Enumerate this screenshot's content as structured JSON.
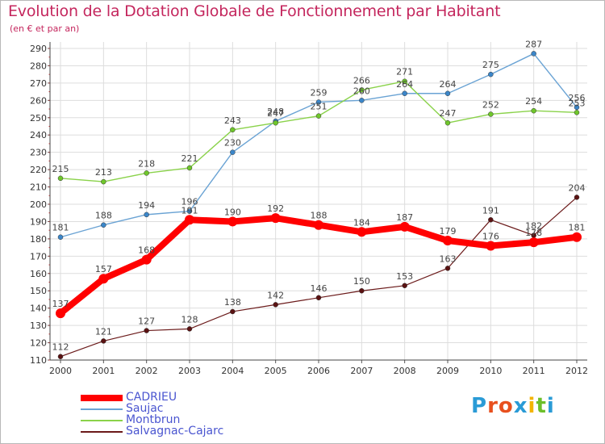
{
  "title": "Evolution de la Dotation Globale de Fonctionnement par Habitant",
  "subtitle": "(en € et par an)",
  "logo": {
    "text": "Proxiti",
    "letters": [
      "P",
      "r",
      "o",
      "x",
      "i",
      "t",
      "i"
    ],
    "colors": [
      "#2a9bd6",
      "#e8501e",
      "#e8501e",
      "#2a9bd6",
      "#f4b400",
      "#6cbf2a",
      "#2a9bd6"
    ]
  },
  "chart_data": {
    "type": "line",
    "x": [
      "2000",
      "2001",
      "2002",
      "2003",
      "2004",
      "2005",
      "2006",
      "2007",
      "2008",
      "2009",
      "2010",
      "2011",
      "2012"
    ],
    "ylim": [
      110,
      290
    ],
    "yticks": [
      110,
      120,
      130,
      140,
      150,
      160,
      170,
      180,
      190,
      200,
      210,
      220,
      230,
      240,
      250,
      260,
      270,
      280,
      290
    ],
    "grid": true,
    "legend_position": "bottom-left",
    "series": [
      {
        "name": "CADRIEU",
        "color": "#ff0000",
        "width": 8,
        "marker": 6,
        "values": [
          137,
          157,
          168,
          191,
          190,
          192,
          188,
          184,
          187,
          179,
          176,
          178,
          181
        ]
      },
      {
        "name": "Saujac",
        "color": "#6aa3d4",
        "width": 1.4,
        "marker": 3,
        "values": [
          181,
          188,
          194,
          196,
          230,
          248,
          259,
          260,
          264,
          264,
          275,
          287,
          256
        ]
      },
      {
        "name": "Montbrun",
        "color": "#8ad24a",
        "width": 1.4,
        "marker": 3,
        "values": [
          215,
          213,
          218,
          221,
          243,
          247,
          251,
          266,
          271,
          247,
          252,
          254,
          253
        ]
      },
      {
        "name": "Salvagnac-Cajarc",
        "color": "#6b1a1a",
        "width": 1.2,
        "marker": 3,
        "values": [
          112,
          121,
          127,
          128,
          138,
          142,
          146,
          150,
          153,
          163,
          191,
          182,
          204
        ]
      }
    ],
    "data_labels": {
      "CADRIEU": [
        "137",
        "157",
        "168",
        "191",
        "190",
        "192",
        "188",
        "184",
        "187",
        "179",
        "176",
        "178",
        "181"
      ],
      "Saujac": [
        "181",
        "188",
        "194",
        "196",
        "230",
        "248",
        "259",
        "260",
        "264",
        "264",
        "275",
        "287",
        "256"
      ],
      "Montbrun": [
        "215",
        "213",
        "218",
        "221",
        "243",
        "247",
        "251",
        "266",
        "271",
        "247",
        "252",
        "254",
        "253"
      ],
      "Salvagnac-Cajarc": [
        "112",
        "121",
        "127",
        "128",
        "138",
        "142",
        "146",
        "150",
        "153",
        "163",
        "191",
        "182",
        "204"
      ]
    }
  }
}
